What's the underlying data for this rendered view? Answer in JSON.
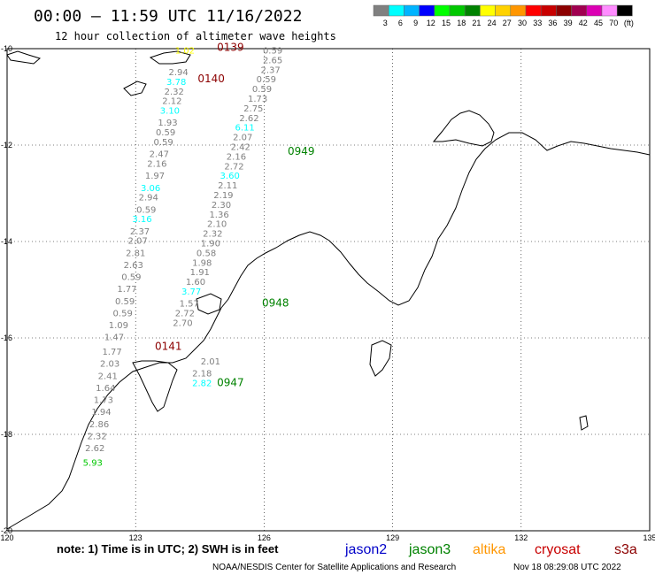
{
  "header": {
    "title": "00:00 — 11:59 UTC 11/16/2022",
    "subtitle": "12 hour collection of altimeter wave heights"
  },
  "legend": {
    "colors": [
      "#808080",
      "#00ffff",
      "#00b4ff",
      "#0000ff",
      "#00ff00",
      "#00c800",
      "#008200",
      "#ffff00",
      "#ffd200",
      "#ff9600",
      "#ff0000",
      "#c80000",
      "#8c0000",
      "#a00050",
      "#dc00b4",
      "#ff8cff",
      "#000000"
    ],
    "labels": [
      "3",
      "6",
      "9",
      "12",
      "15",
      "18",
      "21",
      "24",
      "27",
      "30",
      "33",
      "36",
      "39",
      "42",
      "45",
      "70",
      "(ft)"
    ]
  },
  "footer": {
    "note": "note: 1) Time is in UTC; 2) SWH is in feet",
    "satellites": [
      {
        "name": "jason2",
        "color": "#0000c8"
      },
      {
        "name": "jason3",
        "color": "#008200"
      },
      {
        "name": "altika",
        "color": "#ff9600"
      },
      {
        "name": "cryosat",
        "color": "#c80000"
      },
      {
        "name": "s3a",
        "color": "#8c0000"
      }
    ],
    "credit": "NOAA/NESDIS Center for Satellite Applications and Research",
    "timestamp": "Nov 18 08:29:08 UTC 2022"
  },
  "chart_data": {
    "type": "scatter",
    "xlim": [
      120,
      135
    ],
    "ylim": [
      -20,
      -10
    ],
    "x_ticks": [
      "120",
      "123",
      "126",
      "129",
      "132",
      "135"
    ],
    "y_ticks": [
      "-10",
      "-12",
      "-14",
      "-16",
      "-18",
      "-20"
    ],
    "grid": true,
    "track_times": [
      {
        "label": "0139",
        "lon": 124.9,
        "lat": -10.05,
        "color": "#8c0000"
      },
      {
        "label": "0140",
        "lon": 124.45,
        "lat": -10.7,
        "color": "#8c0000"
      },
      {
        "label": "0141",
        "lon": 123.45,
        "lat": -16.25,
        "color": "#8c0000"
      },
      {
        "label": "0949",
        "lon": 126.55,
        "lat": -12.2,
        "color": "#008200"
      },
      {
        "label": "0948",
        "lon": 125.95,
        "lat": -15.35,
        "color": "#008200"
      },
      {
        "label": "0947",
        "lon": 124.9,
        "lat": -17.0,
        "color": "#008200"
      }
    ],
    "series": [
      {
        "color": "#808080",
        "points": [
          {
            "lon": 126.2,
            "lat": -10.1,
            "v": "0.59"
          },
          {
            "lon": 126.2,
            "lat": -10.3,
            "v": "2.65"
          },
          {
            "lon": 126.15,
            "lat": -10.5,
            "v": "2.37"
          },
          {
            "lon": 126.05,
            "lat": -10.7,
            "v": "0.59"
          },
          {
            "lon": 125.95,
            "lat": -10.9,
            "v": "0.59"
          },
          {
            "lon": 125.85,
            "lat": -11.1,
            "v": "1.73"
          },
          {
            "lon": 125.75,
            "lat": -11.3,
            "v": "2.75"
          },
          {
            "lon": 125.65,
            "lat": -11.5,
            "v": "2.62"
          },
          {
            "lon": 125.55,
            "lat": -11.7,
            "v": "6.11"
          },
          {
            "lon": 125.5,
            "lat": -11.9,
            "v": "2.07"
          },
          {
            "lon": 125.45,
            "lat": -12.1,
            "v": "2.42"
          },
          {
            "lon": 125.35,
            "lat": -12.3,
            "v": "2.16"
          },
          {
            "lon": 125.3,
            "lat": -12.5,
            "v": "2.72"
          },
          {
            "lon": 125.2,
            "lat": -12.7,
            "v": "3.60"
          },
          {
            "lon": 125.15,
            "lat": -12.9,
            "v": "2.11"
          },
          {
            "lon": 125.05,
            "lat": -13.1,
            "v": "2.19"
          },
          {
            "lon": 125.0,
            "lat": -13.3,
            "v": "2.30"
          },
          {
            "lon": 124.95,
            "lat": -13.5,
            "v": "1.36"
          },
          {
            "lon": 124.9,
            "lat": -13.7,
            "v": "2.10"
          },
          {
            "lon": 124.8,
            "lat": -13.9,
            "v": "2.32"
          },
          {
            "lon": 124.75,
            "lat": -14.1,
            "v": "1.90"
          },
          {
            "lon": 124.65,
            "lat": -14.3,
            "v": "0.58"
          },
          {
            "lon": 124.55,
            "lat": -14.5,
            "v": "1.98"
          },
          {
            "lon": 124.5,
            "lat": -14.7,
            "v": "1.91"
          },
          {
            "lon": 124.4,
            "lat": -14.9,
            "v": "1.60"
          },
          {
            "lon": 124.3,
            "lat": -15.1,
            "v": "3.77"
          },
          {
            "lon": 124.25,
            "lat": -15.35,
            "v": "1.57"
          },
          {
            "lon": 124.15,
            "lat": -15.55,
            "v": "2.72"
          },
          {
            "lon": 124.1,
            "lat": -15.75,
            "v": "2.70"
          },
          {
            "lon": 124.75,
            "lat": -16.55,
            "v": "2.01"
          },
          {
            "lon": 124.55,
            "lat": -16.8,
            "v": "2.18"
          },
          {
            "lon": 124.55,
            "lat": -17.0,
            "v": "2.82"
          }
        ]
      },
      {
        "color": "#808080",
        "points": [
          {
            "lon": 124.15,
            "lat": -10.1,
            "v": "1.02"
          },
          {
            "lon": 124.0,
            "lat": -10.55,
            "v": "2.94"
          },
          {
            "lon": 123.95,
            "lat": -10.75,
            "v": "3.78"
          },
          {
            "lon": 123.9,
            "lat": -10.95,
            "v": "2.32"
          },
          {
            "lon": 123.85,
            "lat": -11.15,
            "v": "2.12"
          },
          {
            "lon": 123.8,
            "lat": -11.35,
            "v": "3.10"
          },
          {
            "lon": 123.75,
            "lat": -11.6,
            "v": "1.93"
          },
          {
            "lon": 123.7,
            "lat": -11.8,
            "v": "0.59"
          },
          {
            "lon": 123.65,
            "lat": -12.0,
            "v": "0.59"
          },
          {
            "lon": 123.55,
            "lat": -12.25,
            "v": "2.47"
          },
          {
            "lon": 123.5,
            "lat": -12.45,
            "v": "2.16"
          },
          {
            "lon": 123.45,
            "lat": -12.7,
            "v": "1.97"
          },
          {
            "lon": 123.35,
            "lat": -12.95,
            "v": "3.06"
          },
          {
            "lon": 123.3,
            "lat": -13.15,
            "v": "2.94"
          },
          {
            "lon": 123.25,
            "lat": -13.4,
            "v": "0.59"
          },
          {
            "lon": 123.15,
            "lat": -13.6,
            "v": "3.16"
          },
          {
            "lon": 123.1,
            "lat": -13.85,
            "v": "2.37"
          },
          {
            "lon": 123.05,
            "lat": -14.05,
            "v": "2.07"
          },
          {
            "lon": 123.0,
            "lat": -14.3,
            "v": "2.81"
          },
          {
            "lon": 122.95,
            "lat": -14.55,
            "v": "2.63"
          },
          {
            "lon": 122.9,
            "lat": -14.8,
            "v": "0.59"
          },
          {
            "lon": 122.8,
            "lat": -15.05,
            "v": "1.77"
          },
          {
            "lon": 122.75,
            "lat": -15.3,
            "v": "0.59"
          },
          {
            "lon": 122.7,
            "lat": -15.55,
            "v": "0.59"
          },
          {
            "lon": 122.6,
            "lat": -15.8,
            "v": "1.09"
          },
          {
            "lon": 122.5,
            "lat": -16.05,
            "v": "1.47"
          },
          {
            "lon": 122.45,
            "lat": -16.35,
            "v": "1.77"
          },
          {
            "lon": 122.4,
            "lat": -16.6,
            "v": "2.03"
          },
          {
            "lon": 122.35,
            "lat": -16.85,
            "v": "2.41"
          },
          {
            "lon": 122.3,
            "lat": -17.1,
            "v": "1.64"
          },
          {
            "lon": 122.25,
            "lat": -17.35,
            "v": "1.73"
          },
          {
            "lon": 122.2,
            "lat": -17.6,
            "v": "1.94"
          },
          {
            "lon": 122.15,
            "lat": -17.85,
            "v": "2.86"
          },
          {
            "lon": 122.1,
            "lat": -18.1,
            "v": "2.32"
          },
          {
            "lon": 122.05,
            "lat": -18.35,
            "v": "2.62"
          },
          {
            "lon": 122.0,
            "lat": -18.65,
            "v": "5.93"
          }
        ]
      }
    ],
    "highlight_colors": {
      "6.11": "#00ffff",
      "3.60": "#00ffff",
      "3.77": "#00ffff",
      "2.82": "#00ffff",
      "3.78": "#00ffff",
      "3.10": "#00ffff",
      "3.06": "#00ffff",
      "3.16": "#00ffff",
      "1.02": "#ffff00",
      "5.93": "#00c800"
    }
  }
}
